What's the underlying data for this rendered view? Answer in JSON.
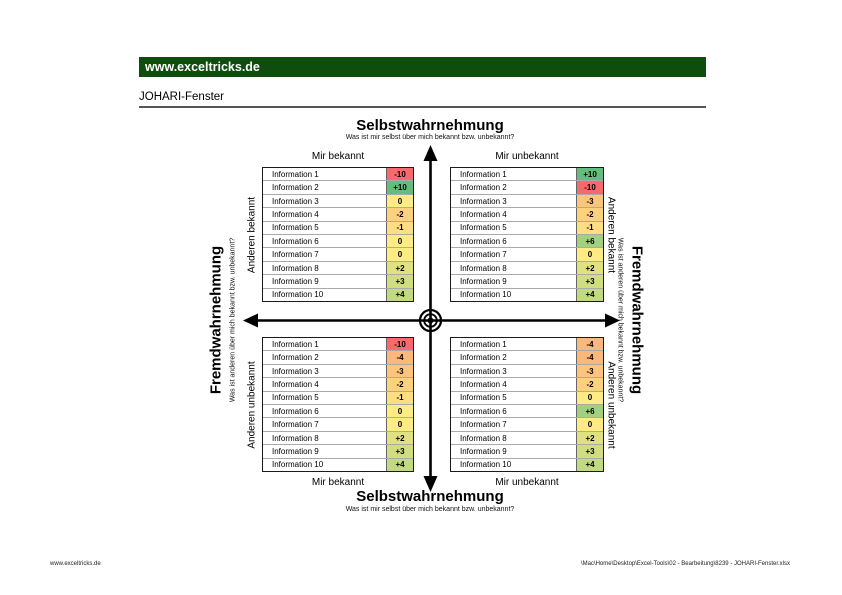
{
  "page": {
    "header_title": "www.exceltricks.de",
    "page_title": "JOHARI-Fenster",
    "footer_left": "www.exceltricks.de",
    "footer_right": "\\Mac\\Home\\Desktop\\Excel-Tools\\02 - Bearbeitung\\8239 - JOHARI-Fenster.xlsx"
  },
  "colors": {
    "header_green": "#0d4d0d",
    "scale_red": "#F8696B",
    "scale_yellow": "#FFEB84",
    "scale_green": "#63BE7B"
  },
  "axes": {
    "top": {
      "title": "Selbstwahrnehmung",
      "subtitle": "Was ist mir selbst über mich bekannt bzw. unbekannt?"
    },
    "bottom": {
      "title": "Selbstwahrnehmung",
      "subtitle": "Was ist mir selbst über mich bekannt bzw. unbekannt?"
    },
    "left": {
      "title": "Fremdwahrnehmung",
      "subtitle": "Was ist anderen über mich bekannt bzw. unbekannt?"
    },
    "right": {
      "title": "Fremdwahrnehmung",
      "subtitle": "Was ist anderen über mich bekannt bzw. unbekannt?"
    }
  },
  "column_labels": {
    "top_left": "Mir bekannt",
    "top_right": "Mir unbekannt",
    "bottom_left": "Mir bekannt",
    "bottom_right": "Mir unbekannt"
  },
  "row_labels": {
    "left_top": "Anderen bekannt",
    "left_bottom": "Anderen unbekannt",
    "right_top": "Anderen bekannt",
    "right_bottom": "Anderen unbekannt"
  },
  "quadrants": {
    "top_left": {
      "rows": [
        {
          "label": "Information 1",
          "value": "-10",
          "color": "#F8696B"
        },
        {
          "label": "Information 2",
          "value": "+10",
          "color": "#63BE7B"
        },
        {
          "label": "Information 3",
          "value": "0",
          "color": "#FFEB84"
        },
        {
          "label": "Information 4",
          "value": "-2",
          "color": "#FED17F"
        },
        {
          "label": "Information 5",
          "value": "-1",
          "color": "#FEDE82"
        },
        {
          "label": "Information 6",
          "value": "0",
          "color": "#FFEB84"
        },
        {
          "label": "Information 7",
          "value": "0",
          "color": "#FFEB84"
        },
        {
          "label": "Information 8",
          "value": "+2",
          "color": "#E0E282"
        },
        {
          "label": "Information 9",
          "value": "+3",
          "color": "#D0DE81"
        },
        {
          "label": "Information 10",
          "value": "+4",
          "color": "#C1D980"
        }
      ]
    },
    "top_right": {
      "rows": [
        {
          "label": "Information 1",
          "value": "+10",
          "color": "#63BE7B"
        },
        {
          "label": "Information 2",
          "value": "-10",
          "color": "#F8696B"
        },
        {
          "label": "Information 3",
          "value": "-3",
          "color": "#FDC47C"
        },
        {
          "label": "Information 4",
          "value": "-2",
          "color": "#FED17F"
        },
        {
          "label": "Information 5",
          "value": "-1",
          "color": "#FEDE82"
        },
        {
          "label": "Information 6",
          "value": "+6",
          "color": "#A1D07F"
        },
        {
          "label": "Information 7",
          "value": "0",
          "color": "#FFEB84"
        },
        {
          "label": "Information 8",
          "value": "+2",
          "color": "#E0E282"
        },
        {
          "label": "Information 9",
          "value": "+3",
          "color": "#D0DE81"
        },
        {
          "label": "Information 10",
          "value": "+4",
          "color": "#C1D980"
        }
      ]
    },
    "bottom_left": {
      "rows": [
        {
          "label": "Information 1",
          "value": "-10",
          "color": "#F8696B"
        },
        {
          "label": "Information 2",
          "value": "-4",
          "color": "#FCB77A"
        },
        {
          "label": "Information 3",
          "value": "-3",
          "color": "#FDC47C"
        },
        {
          "label": "Information 4",
          "value": "-2",
          "color": "#FED17F"
        },
        {
          "label": "Information 5",
          "value": "-1",
          "color": "#FEDE82"
        },
        {
          "label": "Information 6",
          "value": "0",
          "color": "#FFEB84"
        },
        {
          "label": "Information 7",
          "value": "0",
          "color": "#FFEB84"
        },
        {
          "label": "Information 8",
          "value": "+2",
          "color": "#E0E282"
        },
        {
          "label": "Information 9",
          "value": "+3",
          "color": "#D0DE81"
        },
        {
          "label": "Information 10",
          "value": "+4",
          "color": "#C1D980"
        }
      ]
    },
    "bottom_right": {
      "rows": [
        {
          "label": "Information 1",
          "value": "-4",
          "color": "#FCB77A"
        },
        {
          "label": "Information 2",
          "value": "-4",
          "color": "#FCB77A"
        },
        {
          "label": "Information 3",
          "value": "-3",
          "color": "#FDC47C"
        },
        {
          "label": "Information 4",
          "value": "-2",
          "color": "#FED17F"
        },
        {
          "label": "Information 5",
          "value": "0",
          "color": "#FFEB84"
        },
        {
          "label": "Information 6",
          "value": "+6",
          "color": "#A1D07F"
        },
        {
          "label": "Information 7",
          "value": "0",
          "color": "#FFEB84"
        },
        {
          "label": "Information 8",
          "value": "+2",
          "color": "#E0E282"
        },
        {
          "label": "Information 9",
          "value": "+3",
          "color": "#D0DE81"
        },
        {
          "label": "Information 10",
          "value": "+4",
          "color": "#C1D980"
        }
      ]
    }
  }
}
